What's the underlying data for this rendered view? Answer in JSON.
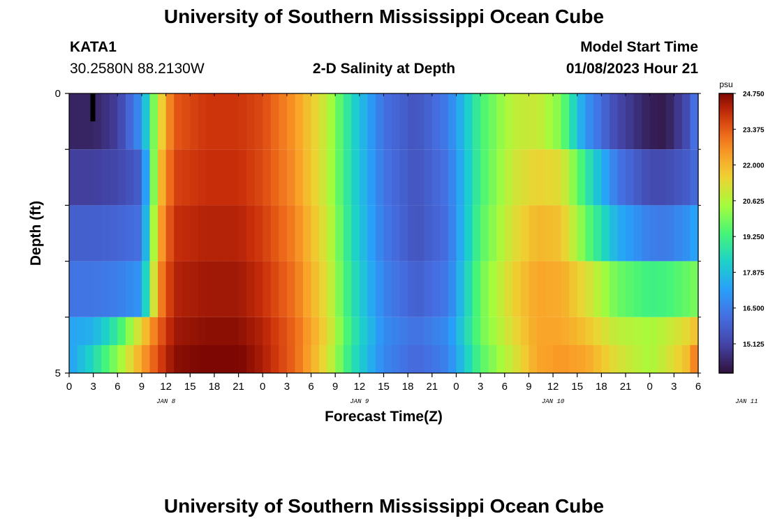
{
  "header": {
    "title": "University of Southern Mississippi Ocean Cube",
    "station": "KATA1",
    "coords": "30.2580N  88.2130W",
    "subtitle": "2-D Salinity at Depth",
    "start_label": "Model Start Time",
    "start_value": "01/08/2023 Hour 21"
  },
  "footer": {
    "title": "University of Southern Mississippi Ocean Cube"
  },
  "chart_data": {
    "type": "heatmap",
    "title": "2-D Salinity at Depth",
    "xlabel": "Forecast Time(Z)",
    "ylabel": "Depth (ft)",
    "x_tick_labels": [
      "0",
      "3",
      "6",
      "9",
      "12",
      "15",
      "18",
      "21",
      "0",
      "3",
      "6",
      "9",
      "12",
      "15",
      "18",
      "21",
      "0",
      "3",
      "6",
      "9",
      "12",
      "15",
      "18",
      "21",
      "0",
      "3",
      "6"
    ],
    "date_labels": [
      {
        "label": "JAN 8",
        "hour": 12
      },
      {
        "label": "JAN 9",
        "hour": 36
      },
      {
        "label": "JAN 10",
        "hour": 60
      },
      {
        "label": "JAN 11",
        "hour": 84
      }
    ],
    "xlim": [
      0,
      78
    ],
    "y_tick_labels": [
      "0",
      "5"
    ],
    "ylim": [
      0,
      5
    ],
    "depth_levels": [
      0,
      1,
      2,
      3,
      4,
      5
    ],
    "colorbar": {
      "unit": "psu",
      "min": 14.0,
      "max": 24.75,
      "tick_labels": [
        "24.750",
        "23.375",
        "22.000",
        "20.625",
        "19.250",
        "17.875",
        "16.500",
        "15.125"
      ],
      "ticks": [
        24.75,
        23.375,
        22.0,
        20.625,
        19.25,
        17.875,
        16.5,
        15.125
      ]
    },
    "profile_hours": [
      0,
      3,
      6,
      9,
      11,
      13,
      17,
      21,
      24,
      28,
      32,
      35,
      39,
      43,
      47,
      51,
      55,
      58,
      61,
      64,
      68,
      72,
      74,
      77,
      78
    ],
    "layers": [
      {
        "depth_range": [
          0,
          1
        ],
        "values": [
          14.4,
          14.4,
          15.0,
          17.0,
          21.0,
          23.4,
          23.9,
          23.9,
          23.6,
          22.5,
          20.8,
          18.5,
          16.2,
          15.5,
          16.5,
          19.3,
          20.8,
          21.0,
          20.0,
          17.0,
          15.2,
          14.3,
          14.2,
          15.5,
          16.8
        ]
      },
      {
        "depth_range": [
          1,
          2
        ],
        "values": [
          15.0,
          15.0,
          15.2,
          15.8,
          21.5,
          23.7,
          24.0,
          24.0,
          23.6,
          22.6,
          20.8,
          18.5,
          16.3,
          15.5,
          16.3,
          19.3,
          21.0,
          21.5,
          21.3,
          19.0,
          16.3,
          15.3,
          15.3,
          15.8,
          16.2
        ]
      },
      {
        "depth_range": [
          2,
          3
        ],
        "values": [
          15.8,
          15.8,
          15.9,
          16.2,
          22.0,
          24.0,
          24.2,
          24.2,
          23.8,
          22.8,
          21.0,
          18.6,
          16.4,
          15.5,
          16.2,
          19.5,
          21.2,
          22.0,
          21.8,
          19.8,
          17.5,
          16.5,
          16.4,
          17.0,
          17.5
        ]
      },
      {
        "depth_range": [
          3,
          4
        ],
        "values": [
          16.3,
          16.3,
          16.5,
          17.0,
          22.5,
          24.2,
          24.4,
          24.4,
          24.0,
          23.0,
          21.2,
          18.8,
          16.6,
          15.8,
          16.4,
          19.8,
          21.5,
          22.3,
          22.2,
          21.3,
          19.8,
          19.2,
          19.3,
          19.8,
          20.0
        ]
      },
      {
        "depth_range": [
          4,
          5
        ],
        "values": [
          17.3,
          17.6,
          19.0,
          21.5,
          23.2,
          24.4,
          24.6,
          24.6,
          24.2,
          23.2,
          21.4,
          19.0,
          16.8,
          16.2,
          16.8,
          19.8,
          21.3,
          22.3,
          22.3,
          21.8,
          20.8,
          20.5,
          20.8,
          21.5,
          22.0
        ]
      },
      {
        "depth_range": [
          4.5,
          5
        ],
        "values": [
          17.2,
          18.5,
          20.2,
          22.3,
          23.6,
          24.6,
          24.8,
          24.8,
          24.3,
          23.2,
          21.2,
          18.8,
          16.7,
          16.0,
          16.6,
          19.5,
          21.0,
          22.3,
          22.5,
          22.3,
          21.2,
          20.5,
          21.0,
          22.0,
          23.5
        ]
      }
    ],
    "marker": {
      "hour": 2.9,
      "depth_range": [
        0,
        0.5
      ],
      "color": "#000000"
    }
  }
}
